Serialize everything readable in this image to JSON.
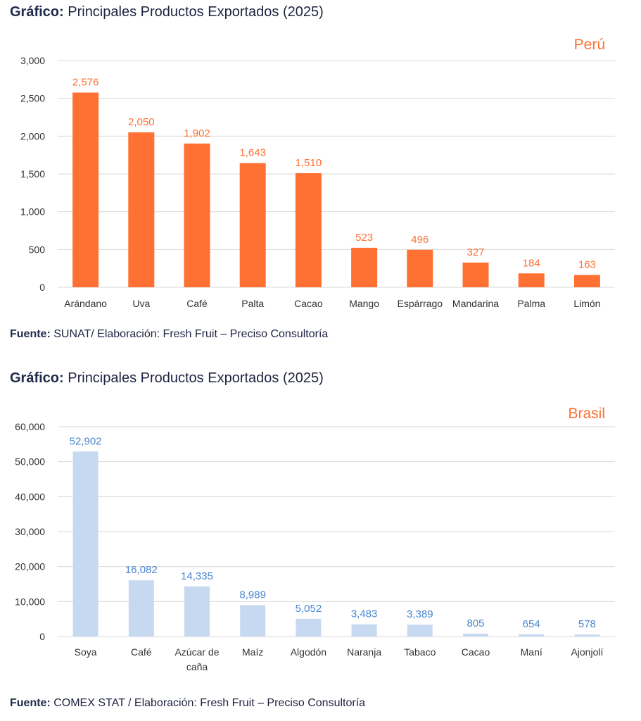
{
  "charts": [
    {
      "title_bold": "Gráfico:",
      "title_rest": " Principales Productos Exportados (2025)",
      "source_bold": "Fuente:",
      "source_rest": " SUNAT/ Elaboración: Fresh Fruit – Preciso Consultoría"
    },
    {
      "title_bold": "Gráfico:",
      "title_rest": " Principales Productos Exportados (2025)",
      "source_bold": "Fuente:",
      "source_rest": "  COMEX STAT / Elaboración: Fresh Fruit – Preciso Consultoría"
    }
  ],
  "chart_data": [
    {
      "type": "bar",
      "country_label": "Perú",
      "categories": [
        "Arándano",
        "Uva",
        "Café",
        "Palta",
        "Cacao",
        "Mango",
        "Espárrago",
        "Mandarina",
        "Palma",
        "Limón"
      ],
      "values": [
        2576,
        2050,
        1902,
        1643,
        1510,
        523,
        496,
        327,
        184,
        163
      ],
      "value_labels": [
        "2,576",
        "2,050",
        "1,902",
        "1,643",
        "1,510",
        "523",
        "496",
        "327",
        "184",
        "163"
      ],
      "yticks": [
        0,
        500,
        1000,
        1500,
        2000,
        2500,
        3000
      ],
      "ytick_labels": [
        "0",
        "500",
        "1,000",
        "1,500",
        "2,000",
        "2,500",
        "3,000"
      ],
      "ylim": [
        0,
        3000
      ],
      "bar_color": "#ff7033",
      "label_color": "#ff7033",
      "grid": true
    },
    {
      "type": "bar",
      "country_label": "Brasil",
      "categories": [
        "Soya",
        "Café",
        "Azúcar de caña",
        "Maíz",
        "Algodón",
        "Naranja",
        "Tabaco",
        "Cacao",
        "Maní",
        "Ajonjolí"
      ],
      "category_lines": [
        [
          "Soya"
        ],
        [
          "Café"
        ],
        [
          "Azúcar de",
          "caña"
        ],
        [
          "Maíz"
        ],
        [
          "Algodón"
        ],
        [
          "Naranja"
        ],
        [
          "Tabaco"
        ],
        [
          "Cacao"
        ],
        [
          "Maní"
        ],
        [
          "Ajonjolí"
        ]
      ],
      "values": [
        52902,
        16082,
        14335,
        8989,
        5052,
        3483,
        3389,
        805,
        654,
        578
      ],
      "value_labels": [
        "52,902",
        "16,082",
        "14,335",
        "8,989",
        "5,052",
        "3,483",
        "3,389",
        "805",
        "654",
        "578"
      ],
      "yticks": [
        0,
        10000,
        20000,
        30000,
        40000,
        50000,
        60000
      ],
      "ytick_labels": [
        "0",
        "10,000",
        "20,000",
        "30,000",
        "40,000",
        "50,000",
        "60,000"
      ],
      "ylim": [
        0,
        60000
      ],
      "bar_color": "#c7d9f1",
      "label_color": "#4a86cf",
      "grid": true
    }
  ],
  "colors": {
    "axis_text": "#333333",
    "grid": "#d9d9d9",
    "country": "#ff7033"
  }
}
